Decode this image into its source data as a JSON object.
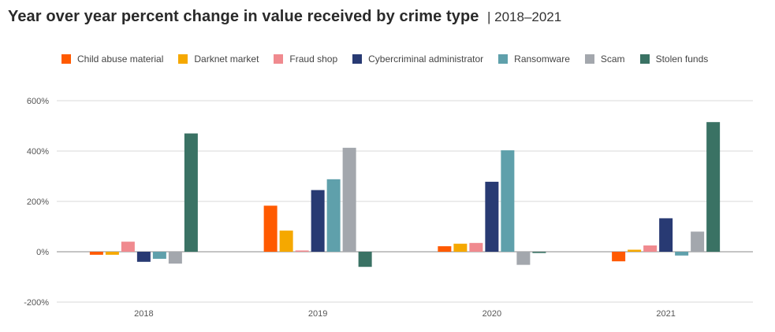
{
  "title": "Year over year percent change in value received by crime type",
  "subtitle": "2018–2021",
  "title_separator": "|",
  "chart_data": {
    "type": "bar",
    "title": "Year over year percent change in value received by crime type",
    "subtitle": "2018–2021",
    "categories": [
      "2018",
      "2019",
      "2020",
      "2021"
    ],
    "ylim": [
      -200,
      600
    ],
    "yticks": [
      -200,
      0,
      200,
      400,
      600
    ],
    "ytick_labels": [
      "-200%",
      "0%",
      "200%",
      "400%",
      "600%"
    ],
    "xlabel": "",
    "ylabel": "",
    "grid": true,
    "legend_position": "top",
    "series": [
      {
        "name": "Child abuse material",
        "color": "#ff5a00",
        "values": [
          -12,
          183,
          22,
          -38
        ]
      },
      {
        "name": "Darknet market",
        "color": "#f5a800",
        "values": [
          -12,
          84,
          32,
          8
        ]
      },
      {
        "name": "Fraud shop",
        "color": "#f08a8f",
        "values": [
          40,
          5,
          35,
          25
        ]
      },
      {
        "name": "Cybercriminal administrator",
        "color": "#283a73",
        "values": [
          -40,
          245,
          278,
          133
        ]
      },
      {
        "name": "Ransomware",
        "color": "#5fa0ab",
        "values": [
          -28,
          288,
          403,
          -15
        ]
      },
      {
        "name": "Scam",
        "color": "#a3a7ad",
        "values": [
          -47,
          413,
          -52,
          80
        ]
      },
      {
        "name": "Stolen funds",
        "color": "#3a7264",
        "values": [
          470,
          -60,
          -5,
          515
        ]
      }
    ]
  }
}
